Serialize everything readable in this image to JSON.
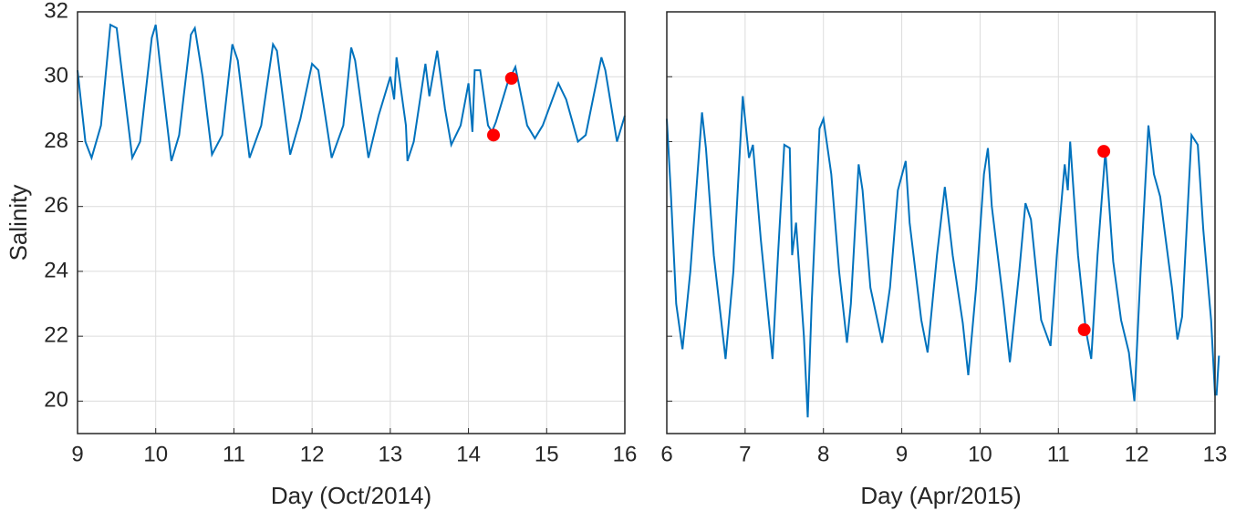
{
  "chart_data": [
    {
      "type": "line",
      "xlabel": "Day (Oct/2014)",
      "ylabel": "Salinity",
      "xlim": [
        9,
        16
      ],
      "xticks": [
        9,
        10,
        11,
        12,
        13,
        14,
        15,
        16
      ],
      "ylim": [
        19,
        32
      ],
      "yticks": [
        20,
        22,
        24,
        26,
        28,
        30,
        32
      ],
      "show_ytick_labels": true,
      "grid": true,
      "color": "#0072bd",
      "x": [
        9.0,
        9.1,
        9.18,
        9.3,
        9.42,
        9.5,
        9.55,
        9.7,
        9.8,
        9.95,
        10.0,
        10.05,
        10.2,
        10.3,
        10.45,
        10.5,
        10.6,
        10.72,
        10.85,
        10.98,
        11.05,
        11.2,
        11.35,
        11.5,
        11.55,
        11.72,
        11.85,
        12.0,
        12.08,
        12.25,
        12.4,
        12.5,
        12.55,
        12.72,
        12.85,
        13.0,
        13.05,
        13.08,
        13.2,
        13.22,
        13.3,
        13.45,
        13.5,
        13.6,
        13.7,
        13.78,
        13.9,
        14.0,
        14.05,
        14.08,
        14.15,
        14.25,
        14.3,
        14.35,
        14.5,
        14.6,
        14.75,
        14.85,
        14.95,
        15.15,
        15.25,
        15.4,
        15.5,
        15.7,
        15.75,
        15.9,
        16.0
      ],
      "values": [
        30.2,
        28.0,
        27.5,
        28.5,
        31.6,
        31.5,
        30.5,
        27.5,
        28.0,
        31.2,
        31.6,
        30.5,
        27.4,
        28.2,
        31.3,
        31.5,
        30.0,
        27.6,
        28.2,
        31.0,
        30.5,
        27.5,
        28.5,
        31.0,
        30.8,
        27.6,
        28.7,
        30.4,
        30.2,
        27.5,
        28.5,
        30.9,
        30.5,
        27.5,
        28.8,
        30.0,
        29.3,
        30.6,
        28.5,
        27.4,
        28.0,
        30.4,
        29.4,
        30.8,
        29.0,
        27.9,
        28.5,
        29.8,
        28.3,
        30.2,
        30.2,
        28.5,
        28.3,
        28.6,
        29.8,
        30.3,
        28.5,
        28.1,
        28.5,
        29.8,
        29.3,
        28.0,
        28.2,
        30.6,
        30.2,
        28.0,
        28.8
      ],
      "markers": {
        "color": "#ff0000",
        "x": [
          14.32,
          14.55
        ],
        "values": [
          28.2,
          29.95
        ]
      }
    },
    {
      "type": "line",
      "xlabel": "Day (Apr/2015)",
      "xlim": [
        6,
        13
      ],
      "xticks": [
        6,
        7,
        8,
        9,
        10,
        11,
        12,
        13
      ],
      "ylim": [
        19,
        32
      ],
      "yticks": [
        20,
        22,
        24,
        26,
        28,
        30,
        32
      ],
      "show_ytick_labels": false,
      "grid": true,
      "color": "#0072bd",
      "x": [
        6.0,
        6.05,
        6.12,
        6.2,
        6.3,
        6.45,
        6.5,
        6.6,
        6.75,
        6.85,
        6.97,
        7.05,
        7.1,
        7.2,
        7.35,
        7.42,
        7.5,
        7.57,
        7.6,
        7.65,
        7.75,
        7.8,
        7.85,
        7.95,
        8.0,
        8.1,
        8.2,
        8.3,
        8.35,
        8.45,
        8.5,
        8.6,
        8.75,
        8.85,
        8.95,
        9.05,
        9.1,
        9.25,
        9.33,
        9.45,
        9.55,
        9.65,
        9.78,
        9.85,
        9.95,
        10.05,
        10.1,
        10.15,
        10.3,
        10.38,
        10.5,
        10.58,
        10.65,
        10.78,
        10.9,
        10.98,
        11.08,
        11.12,
        11.15,
        11.25,
        11.35,
        11.42,
        11.5,
        11.6,
        11.65,
        11.7,
        11.8,
        11.9,
        11.97,
        12.05,
        12.15,
        12.22,
        12.3,
        12.45,
        12.52,
        12.58,
        12.7,
        12.78,
        12.85,
        12.95,
        13.0,
        13.02,
        13.05
      ],
      "values": [
        28.7,
        26.5,
        23.0,
        21.6,
        24.0,
        28.9,
        27.8,
        24.5,
        21.3,
        24.0,
        29.4,
        27.5,
        27.9,
        25.0,
        21.3,
        24.5,
        27.9,
        27.8,
        24.5,
        25.5,
        22.0,
        19.5,
        23.0,
        28.4,
        28.7,
        27.0,
        24.0,
        21.8,
        23.0,
        27.3,
        26.5,
        23.5,
        21.8,
        23.5,
        26.5,
        27.4,
        25.5,
        22.5,
        21.5,
        24.5,
        26.6,
        24.5,
        22.4,
        20.8,
        23.5,
        27.0,
        27.8,
        26.0,
        23.0,
        21.2,
        24.0,
        26.1,
        25.6,
        22.5,
        21.7,
        24.5,
        27.3,
        26.5,
        28.0,
        24.5,
        22.2,
        21.3,
        24.5,
        27.7,
        26.0,
        24.3,
        22.5,
        21.5,
        20.0,
        24.0,
        28.5,
        27.0,
        26.3,
        23.5,
        21.9,
        22.6,
        28.2,
        27.9,
        25.3,
        22.5,
        20.2,
        20.2,
        21.4
      ],
      "markers": {
        "color": "#ff0000",
        "x": [
          11.33,
          11.58
        ],
        "values": [
          22.2,
          27.7
        ]
      }
    }
  ]
}
